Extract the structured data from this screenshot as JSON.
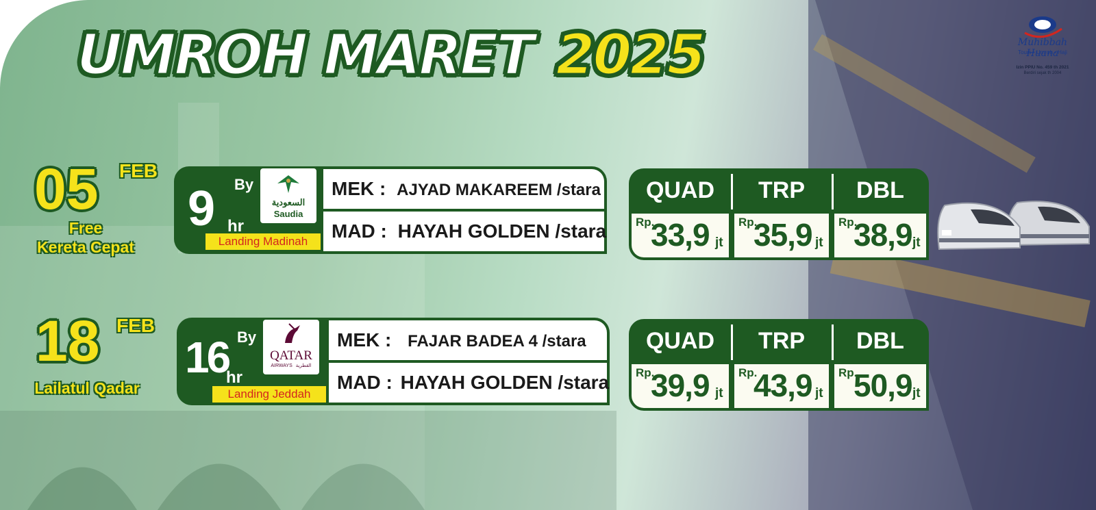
{
  "title": {
    "text": "UMROH MARET",
    "year": "2025"
  },
  "logo": {
    "name": "Muhibbah Huana",
    "tagline": "Tours • Umroh • Haji",
    "license": "Izin PPIU No. 459 th 2021",
    "since": "Berdiri sejak th 2004"
  },
  "packages": [
    {
      "day": "05",
      "month": "FEB",
      "note_line1": "Free",
      "note_line2": "Kereta Cepat",
      "flight_hours": "9",
      "hours_unit": "hr",
      "by": "By",
      "airline": "saudia",
      "landing": "Landing Madinah",
      "mek_label": "MEK :",
      "mek_hotel": "AJYAD MAKAREEM /stara",
      "mad_label": "MAD :",
      "mad_hotel": "HAYAH GOLDEN /stara",
      "prices": [
        {
          "type": "QUAD",
          "currency": "Rp.",
          "amount": "33,9",
          "unit": "jt"
        },
        {
          "type": "TRP",
          "currency": "Rp.",
          "amount": "35,9",
          "unit": "jt"
        },
        {
          "type": "DBL",
          "currency": "Rp.",
          "amount": "38,9",
          "unit": "jt"
        }
      ]
    },
    {
      "day": "18",
      "month": "FEB",
      "note_line1": "Lailatul Qadar",
      "note_line2": "",
      "flight_hours": "16",
      "hours_unit": "hr",
      "by": "By",
      "airline": "qatar",
      "landing": "Landing Jeddah",
      "mek_label": "MEK :",
      "mek_hotel": "FAJAR BADEA 4 /stara",
      "mad_label": "MAD :",
      "mad_hotel": "HAYAH GOLDEN /stara",
      "prices": [
        {
          "type": "QUAD",
          "currency": "Rp.",
          "amount": "39,9",
          "unit": "jt"
        },
        {
          "type": "TRP",
          "currency": "Rp.",
          "amount": "43,9",
          "unit": "jt"
        },
        {
          "type": "DBL",
          "currency": "Rp.",
          "amount": "50,9",
          "unit": "jt"
        }
      ]
    }
  ],
  "airlines": {
    "saudia": {
      "name": "Saudia",
      "arabic": "السعودية",
      "icon": "saudia-logo-icon"
    },
    "qatar": {
      "name": "QATAR",
      "sub": "AIRWAYS",
      "arabic": "القطرية",
      "icon": "qatar-oryx-icon"
    }
  },
  "colors": {
    "brand_green": "#1e5a22",
    "accent_yellow": "#f5e21b",
    "landing_red": "#d3261f"
  },
  "decoration": {
    "train_icon": "high-speed-train-icon"
  }
}
